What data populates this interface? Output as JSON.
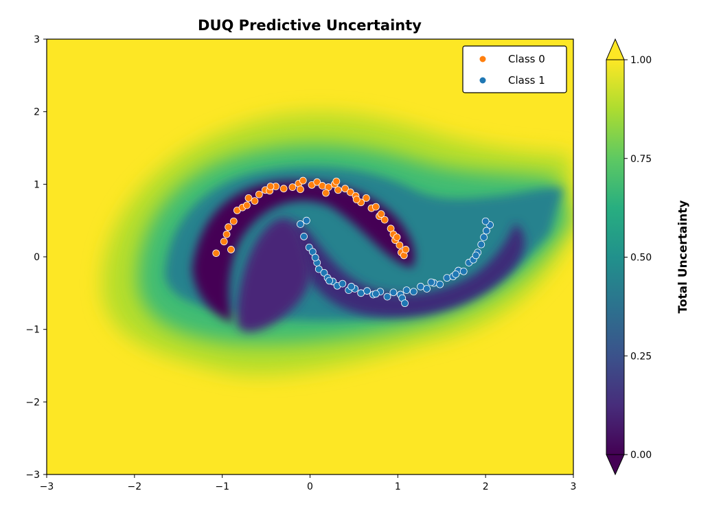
{
  "chart_data": {
    "type": "scatter",
    "title": "DUQ Predictive Uncertainty",
    "xlabel": "",
    "ylabel": "",
    "xlim": [
      -3,
      3
    ],
    "ylim": [
      -3,
      3
    ],
    "x_ticks": [
      "−3",
      "−2",
      "−1",
      "0",
      "1",
      "2",
      "3"
    ],
    "y_ticks": [
      "−3",
      "−2",
      "−1",
      "0",
      "1",
      "2",
      "3"
    ],
    "background": {
      "type": "contourf",
      "quantity": "Total Uncertainty",
      "colormap": "viridis",
      "range": [
        0.0,
        1.0
      ]
    },
    "colorbar": {
      "label": "Total Uncertainty",
      "ticks": [
        "0.00",
        "0.25",
        "0.50",
        "0.75",
        "1.00"
      ],
      "extend": "both"
    },
    "legend": {
      "position": "top-right"
    },
    "series": [
      {
        "name": "Class 0",
        "color": "#ff7f0e",
        "shape": "two-moons upper arc",
        "x": [
          -1.07,
          -0.98,
          -0.93,
          -0.87,
          -0.83,
          -0.77,
          -0.7,
          -0.63,
          -0.58,
          -0.51,
          -0.46,
          -0.39,
          -0.3,
          -0.2,
          -0.13,
          -0.08,
          0.02,
          0.08,
          0.14,
          0.21,
          0.28,
          0.32,
          0.4,
          0.46,
          0.52,
          0.58,
          0.64,
          0.7,
          0.75,
          0.79,
          0.85,
          0.92,
          0.95,
          0.97,
          1.02,
          1.04,
          1.07,
          1.09,
          -0.95,
          -0.72,
          -0.45,
          -0.11,
          0.18,
          0.53,
          0.81,
          0.99,
          -0.9,
          0.3
        ],
        "y": [
          0.05,
          0.21,
          0.41,
          0.49,
          0.64,
          0.68,
          0.81,
          0.77,
          0.86,
          0.92,
          0.91,
          0.97,
          0.94,
          0.96,
          1.01,
          1.05,
          0.99,
          1.03,
          0.98,
          0.96,
          1.0,
          0.92,
          0.94,
          0.89,
          0.84,
          0.75,
          0.81,
          0.67,
          0.69,
          0.56,
          0.51,
          0.39,
          0.31,
          0.23,
          0.16,
          0.06,
          0.02,
          0.1,
          0.31,
          0.71,
          0.97,
          0.93,
          0.88,
          0.79,
          0.59,
          0.27,
          0.1,
          1.04
        ]
      },
      {
        "name": "Class 1",
        "color": "#1f77b4",
        "shape": "two-moons lower arc",
        "x": [
          -0.11,
          -0.07,
          -0.04,
          -0.01,
          0.03,
          0.08,
          0.1,
          0.16,
          0.2,
          0.26,
          0.31,
          0.37,
          0.44,
          0.51,
          0.58,
          0.65,
          0.72,
          0.8,
          0.88,
          0.95,
          1.03,
          1.1,
          1.18,
          1.26,
          1.33,
          1.41,
          1.48,
          1.56,
          1.63,
          1.69,
          1.75,
          1.81,
          1.86,
          1.91,
          1.95,
          1.98,
          2.01,
          2.05,
          0.06,
          0.22,
          0.47,
          0.75,
          1.05,
          1.38,
          1.66,
          1.89,
          2.0,
          1.08
        ],
        "y": [
          0.45,
          0.28,
          0.5,
          0.13,
          0.07,
          -0.08,
          -0.17,
          -0.22,
          -0.29,
          -0.34,
          -0.4,
          -0.37,
          -0.46,
          -0.44,
          -0.5,
          -0.47,
          -0.52,
          -0.48,
          -0.55,
          -0.49,
          -0.52,
          -0.46,
          -0.48,
          -0.41,
          -0.44,
          -0.36,
          -0.38,
          -0.29,
          -0.27,
          -0.19,
          -0.2,
          -0.08,
          -0.04,
          0.06,
          0.17,
          0.27,
          0.36,
          0.44,
          -0.01,
          -0.33,
          -0.41,
          -0.51,
          -0.57,
          -0.35,
          -0.24,
          0.02,
          0.49,
          -0.64
        ]
      }
    ]
  }
}
